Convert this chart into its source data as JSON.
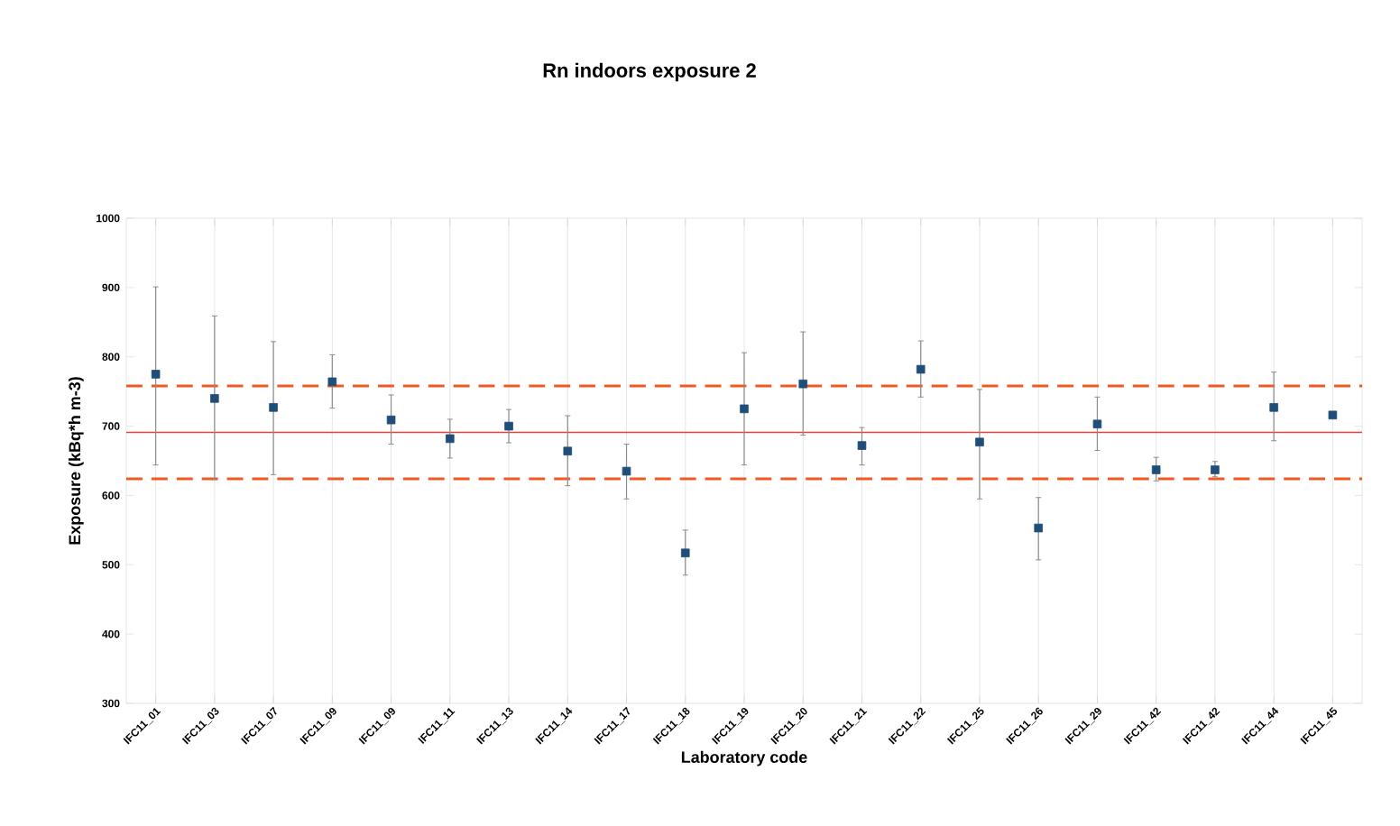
{
  "chart_data": {
    "type": "scatter",
    "title": "Rn indoors exposure 2",
    "xlabel": "Laboratory code",
    "ylabel": "Exposure (kBq*h m-3)",
    "categories": [
      "IFC11_01",
      "IFC11_03",
      "IFC11_07",
      "IFC11_09",
      "IFC11_09",
      "IFC11_11",
      "IFC11_13",
      "IFC11_14",
      "IFC11_17",
      "IFC11_18",
      "IFC11_19",
      "IFC11_20",
      "IFC11_21",
      "IFC11_22",
      "IFC11_25",
      "IFC11_26",
      "IFC11_29",
      "IFC11_42",
      "IFC11_42",
      "IFC11_44",
      "IFC11_45"
    ],
    "values": [
      775,
      740,
      727,
      764,
      709,
      682,
      700,
      664,
      635,
      517,
      725,
      761,
      672,
      782,
      677,
      553,
      703,
      637,
      637,
      727,
      716
    ],
    "errors": [
      [
        644,
        901
      ],
      [
        623,
        859
      ],
      [
        630,
        822
      ],
      [
        726,
        803
      ],
      [
        674,
        745
      ],
      [
        654,
        710
      ],
      [
        676,
        724
      ],
      [
        614,
        715
      ],
      [
        595,
        674
      ],
      [
        485,
        550
      ],
      [
        644,
        806
      ],
      [
        687,
        836
      ],
      [
        644,
        698
      ],
      [
        742,
        823
      ],
      [
        595,
        753
      ],
      [
        507,
        597
      ],
      [
        665,
        742
      ],
      [
        621,
        655
      ],
      [
        627,
        649
      ],
      [
        679,
        778
      ],
      null
    ],
    "color": "#1f4e79",
    "marker": "square",
    "ylim": [
      300,
      1000
    ],
    "yticks": [
      300,
      400,
      500,
      600,
      700,
      800,
      900,
      1000
    ],
    "grid": "x",
    "ref_lines": [
      {
        "axis": "y",
        "value": 758,
        "color": "#f05a22",
        "line_style": "dashed"
      },
      {
        "axis": "y",
        "value": 691,
        "color": "#e8403a",
        "line_style": "solid"
      },
      {
        "axis": "y",
        "value": 624,
        "color": "#f05a22",
        "line_style": "dashed"
      }
    ]
  }
}
